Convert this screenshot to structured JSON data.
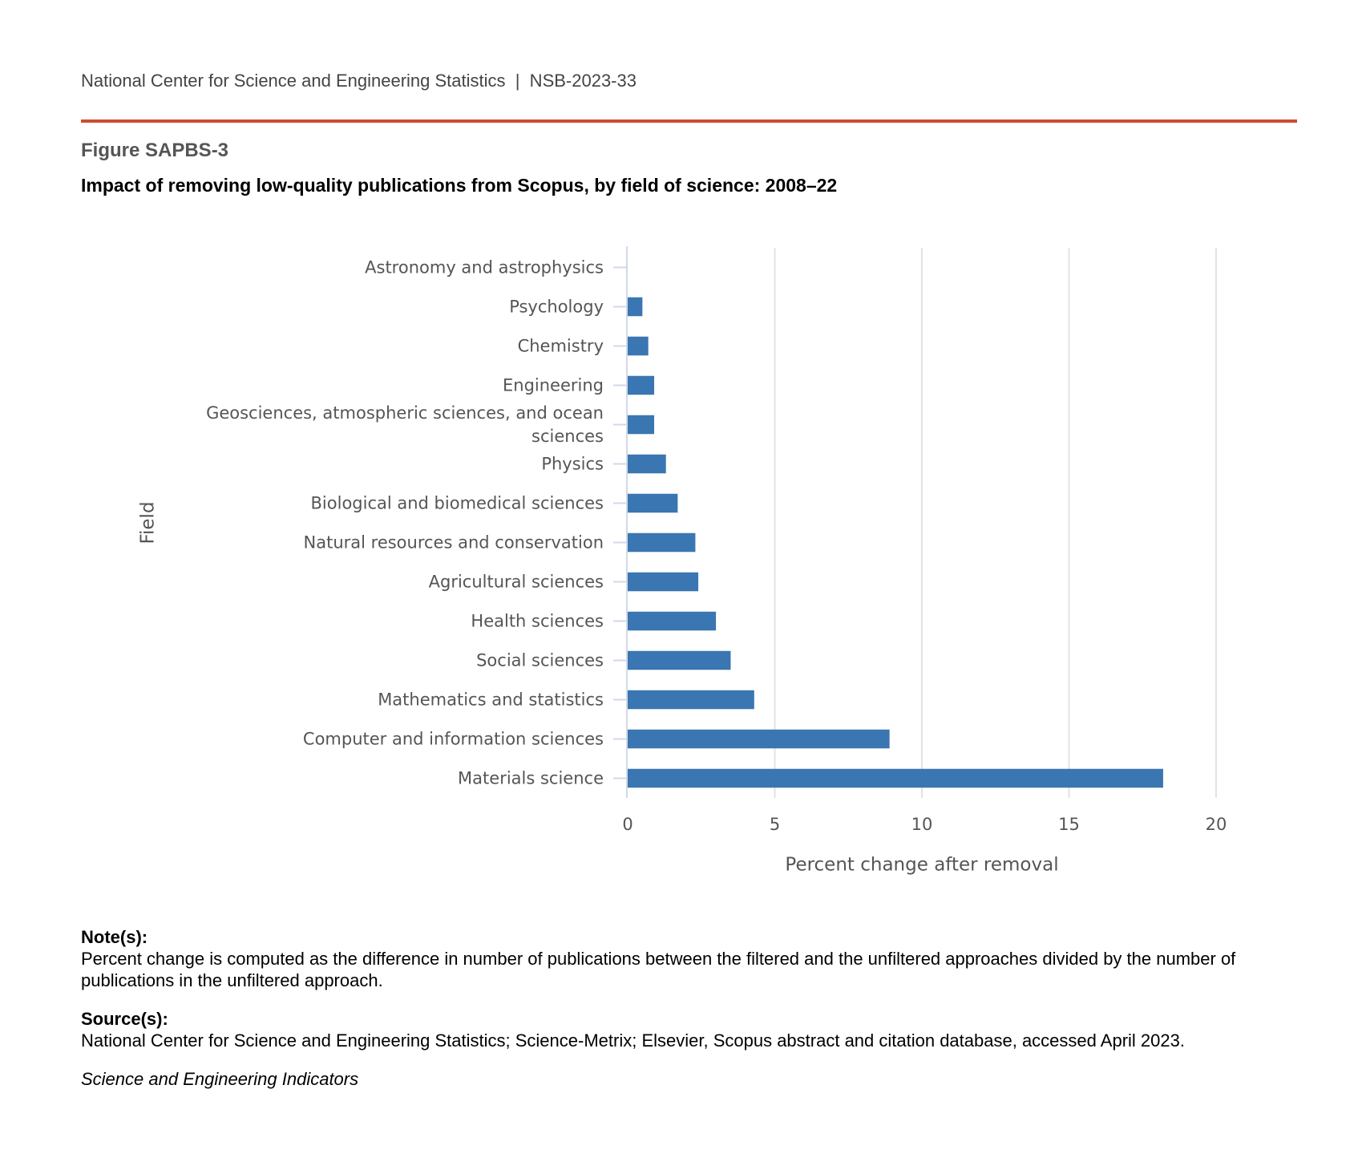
{
  "header": "National Center for Science and Engineering Statistics  |  NSB-2023-33",
  "figure_label": "Figure SAPBS-3",
  "chart_data": {
    "type": "bar",
    "orientation": "horizontal",
    "title": "Impact of removing low-quality publications from Scopus, by field of science: 2008–22",
    "categories": [
      "Astronomy and astrophysics",
      "Psychology",
      "Chemistry",
      "Engineering",
      "Geosciences, atmospheric sciences, and ocean sciences",
      "Physics",
      "Biological and biomedical sciences",
      "Natural resources and conservation",
      "Agricultural sciences",
      "Health sciences",
      "Social sciences",
      "Mathematics and statistics",
      "Computer and information sciences",
      "Materials science"
    ],
    "values": [
      0,
      0.5,
      0.7,
      0.9,
      0.9,
      1.3,
      1.7,
      2.3,
      2.4,
      3.0,
      3.5,
      4.3,
      8.9,
      18.2
    ],
    "color": "#3a76b1",
    "xlim": [
      0,
      21
    ],
    "xticks": [
      0,
      5,
      10,
      15,
      20
    ],
    "xlabel": "Percent change after removal",
    "ylabel": "Field",
    "grid": true
  },
  "notes": {
    "heading": "Note(s):",
    "text": "Percent change is computed as the difference in number of publications between the filtered and the unfiltered approaches divided by the number of publications in the unfiltered approach."
  },
  "source": {
    "heading": "Source(s):",
    "text": "National Center for Science and Engineering Statistics; Science-Metrix; Elsevier, Scopus abstract and citation database, accessed April 2023."
  },
  "footer": "Science and Engineering Indicators"
}
